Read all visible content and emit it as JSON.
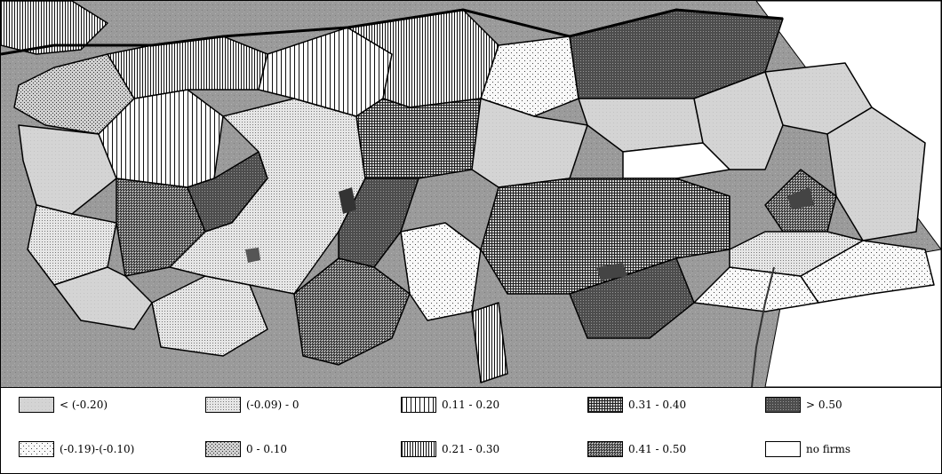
{
  "map": {
    "sea_color": "#9a9a9a",
    "border_color": "#000000",
    "region_classes": [
      {
        "id": "c1",
        "fill": "#d6d6d6"
      },
      {
        "id": "c2",
        "fill": "#e9e9e9"
      },
      {
        "id": "c3",
        "fill": "#f3f3f3"
      },
      {
        "id": "c4",
        "fill": "#c8c8c8"
      },
      {
        "id": "c5",
        "fill": "#ffffff"
      },
      {
        "id": "c6",
        "fill": "#ffffff"
      },
      {
        "id": "c7",
        "fill": "#bcbcbc"
      },
      {
        "id": "c8",
        "fill": "#8a8a8a"
      },
      {
        "id": "c9",
        "fill": "#5a5a5a"
      },
      {
        "id": "c10",
        "fill": "#ffffff"
      }
    ]
  },
  "legend": {
    "items": [
      {
        "label": "< (-0.20)",
        "pattern": "solid-light"
      },
      {
        "label": "(-0.09) - 0",
        "pattern": "fine-dots"
      },
      {
        "label": "0.11 - 0.20",
        "pattern": "vertical-lines-wide"
      },
      {
        "label": "0.31 - 0.40",
        "pattern": "grid"
      },
      {
        "label": "> 0.50",
        "pattern": "dense-dark"
      },
      {
        "label": "(-0.19)-(-0.10)",
        "pattern": "sparse-dots"
      },
      {
        "label": "0 - 0.10",
        "pattern": "diagonal-dots"
      },
      {
        "label": "0.21 - 0.30",
        "pattern": "vertical-lines-dense"
      },
      {
        "label": "0.41 - 0.50",
        "pattern": "dark-cross"
      },
      {
        "label": "no firms",
        "pattern": "empty"
      }
    ]
  }
}
